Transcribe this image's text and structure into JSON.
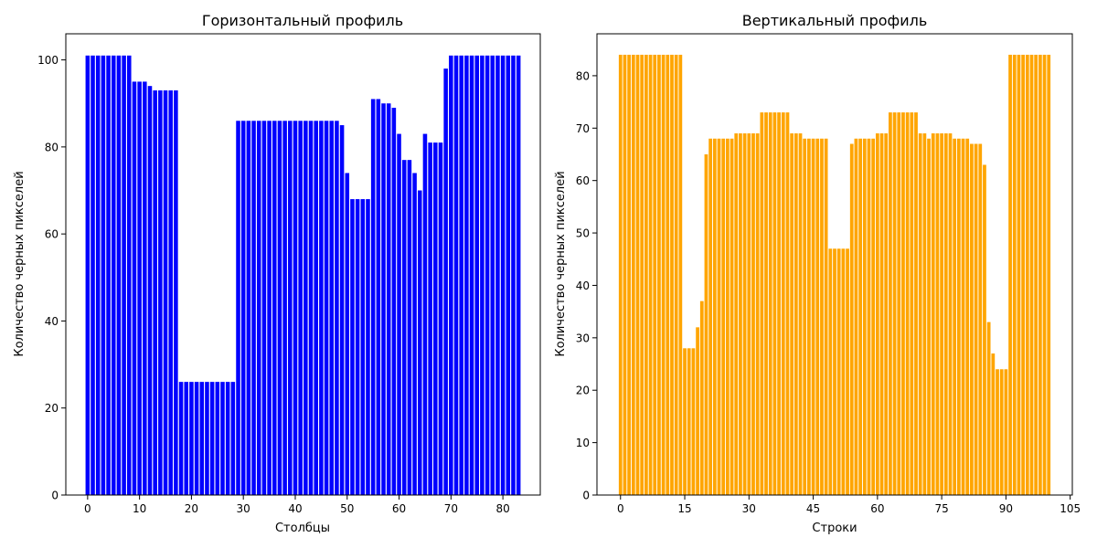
{
  "chart_data": [
    {
      "type": "bar",
      "title": "Горизонтальный профиль",
      "xlabel": "Столбцы",
      "ylabel": "Количество черных пикселей",
      "color": "#0000ff",
      "x": [
        0,
        1,
        2,
        3,
        4,
        5,
        6,
        7,
        8,
        9,
        10,
        11,
        12,
        13,
        14,
        15,
        16,
        17,
        18,
        19,
        20,
        21,
        22,
        23,
        24,
        25,
        26,
        27,
        28,
        29,
        30,
        31,
        32,
        33,
        34,
        35,
        36,
        37,
        38,
        39,
        40,
        41,
        42,
        43,
        44,
        45,
        46,
        47,
        48,
        49,
        50,
        51,
        52,
        53,
        54,
        55,
        56,
        57,
        58,
        59,
        60,
        61,
        62,
        63,
        64,
        65,
        66,
        67,
        68,
        69,
        70,
        71,
        72,
        73,
        74,
        75,
        76,
        77,
        78,
        79,
        80,
        81,
        82,
        83
      ],
      "values": [
        101,
        101,
        101,
        101,
        101,
        101,
        101,
        101,
        101,
        95,
        95,
        95,
        94,
        93,
        93,
        93,
        93,
        93,
        26,
        26,
        26,
        26,
        26,
        26,
        26,
        26,
        26,
        26,
        26,
        86,
        86,
        86,
        86,
        86,
        86,
        86,
        86,
        86,
        86,
        86,
        86,
        86,
        86,
        86,
        86,
        86,
        86,
        86,
        86,
        85,
        74,
        68,
        68,
        68,
        68,
        91,
        91,
        90,
        90,
        89,
        83,
        77,
        77,
        74,
        70,
        83,
        81,
        81,
        81,
        98,
        101,
        101,
        101,
        101,
        101,
        101,
        101,
        101,
        101,
        101,
        101,
        101,
        101,
        101
      ],
      "xlim": [
        -4.2,
        87.2
      ],
      "ylim": [
        0,
        106
      ],
      "xticks": [
        "0",
        "10",
        "20",
        "30",
        "40",
        "50",
        "60",
        "70",
        "80"
      ],
      "yticks": [
        "0",
        "20",
        "40",
        "60",
        "80",
        "100"
      ],
      "grid": false
    },
    {
      "type": "bar",
      "title": "Вертикальный профиль",
      "xlabel": "Строки",
      "ylabel": "Количество черных пикселей",
      "color": "#ffa500",
      "x": [
        0,
        1,
        2,
        3,
        4,
        5,
        6,
        7,
        8,
        9,
        10,
        11,
        12,
        13,
        14,
        15,
        16,
        17,
        18,
        19,
        20,
        21,
        22,
        23,
        24,
        25,
        26,
        27,
        28,
        29,
        30,
        31,
        32,
        33,
        34,
        35,
        36,
        37,
        38,
        39,
        40,
        41,
        42,
        43,
        44,
        45,
        46,
        47,
        48,
        49,
        50,
        51,
        52,
        53,
        54,
        55,
        56,
        57,
        58,
        59,
        60,
        61,
        62,
        63,
        64,
        65,
        66,
        67,
        68,
        69,
        70,
        71,
        72,
        73,
        74,
        75,
        76,
        77,
        78,
        79,
        80,
        81,
        82,
        83,
        84,
        85,
        86,
        87,
        88,
        89,
        90,
        91,
        92,
        93,
        94,
        95,
        96,
        97,
        98,
        99,
        100
      ],
      "values": [
        84,
        84,
        84,
        84,
        84,
        84,
        84,
        84,
        84,
        84,
        84,
        84,
        84,
        84,
        84,
        28,
        28,
        28,
        32,
        37,
        65,
        68,
        68,
        68,
        68,
        68,
        68,
        69,
        69,
        69,
        69,
        69,
        69,
        73,
        73,
        73,
        73,
        73,
        73,
        73,
        69,
        69,
        69,
        68,
        68,
        68,
        68,
        68,
        68,
        47,
        47,
        47,
        47,
        47,
        67,
        68,
        68,
        68,
        68,
        68,
        69,
        69,
        69,
        73,
        73,
        73,
        73,
        73,
        73,
        73,
        69,
        69,
        68,
        69,
        69,
        69,
        69,
        69,
        68,
        68,
        68,
        68,
        67,
        67,
        67,
        63,
        33,
        27,
        24,
        24,
        24,
        84,
        84,
        84,
        84,
        84,
        84,
        84,
        84,
        84,
        84
      ],
      "xlim": [
        -5.5,
        105.5
      ],
      "ylim": [
        0,
        88
      ],
      "xticks": [
        "0",
        "15",
        "30",
        "45",
        "60",
        "75",
        "90",
        "105"
      ],
      "yticks": [
        "0",
        "10",
        "20",
        "30",
        "40",
        "50",
        "60",
        "70",
        "80"
      ],
      "grid": false
    }
  ]
}
